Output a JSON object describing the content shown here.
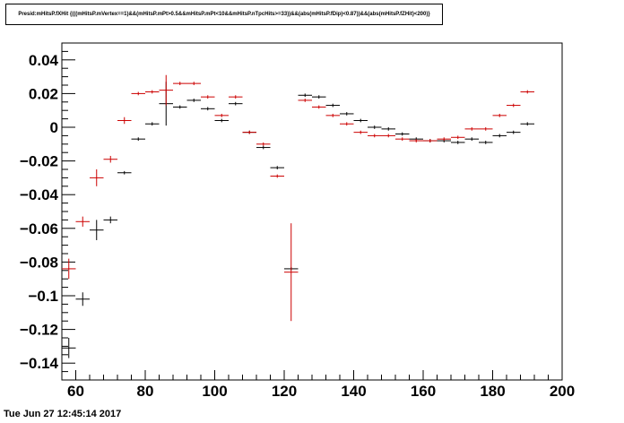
{
  "title": "Presid:mHitsP.fXHit {(((mHitsP.mVertex==1)&&(mHitsP.mPt>0.5&&mHitsP.mPt<10&&mHitsP.nTpcHits>=33))&&(abs(mHitsP.fDip)<0.87))&&(abs(mHitsP.fZHit)<200)}",
  "footer": "Tue Jun 27 12:45:14 2017",
  "chart_data": {
    "type": "scatter",
    "title": "Presid:mHitsP.fXHit {(((mHitsP.mVertex==1)&&(mHitsP.mPt>0.5&&mHitsP.mPt<10&&mHitsP.nTpcHits>=33))&&(abs(mHitsP.fDip)<0.87))&&(abs(mHitsP.fZHit)<200)}",
    "xlim": [
      56,
      200
    ],
    "ylim": [
      -0.15,
      0.05
    ],
    "x_ticks": [
      60,
      80,
      100,
      120,
      140,
      160,
      180,
      200
    ],
    "y_ticks": [
      -0.14,
      -0.12,
      -0.1,
      -0.08,
      -0.06,
      -0.04,
      -0.02,
      0,
      0.02,
      0.04
    ],
    "y_tick_labels": [
      "−0.14",
      "−0.12",
      "−0.1",
      "−0.08",
      "−0.06",
      "−0.04",
      "−0.02",
      "0",
      "0.02",
      "0.04"
    ],
    "grid": false,
    "series": [
      {
        "color": "#000000",
        "x_halfwidth": 2,
        "points": [
          {
            "x": 58,
            "y": -0.131,
            "e": 0.006
          },
          {
            "x": 62,
            "y": -0.102,
            "e": 0.004
          },
          {
            "x": 66,
            "y": -0.061,
            "e": 0.006
          },
          {
            "x": 70,
            "y": -0.055,
            "e": 0.002
          },
          {
            "x": 74,
            "y": -0.027,
            "e": 0.001
          },
          {
            "x": 78,
            "y": -0.007,
            "e": 0.001
          },
          {
            "x": 82,
            "y": 0.002,
            "e": 0.001
          },
          {
            "x": 86,
            "y": 0.014,
            "e": 0.013
          },
          {
            "x": 90,
            "y": 0.012,
            "e": 0.001
          },
          {
            "x": 94,
            "y": 0.016,
            "e": 0.001
          },
          {
            "x": 98,
            "y": 0.011,
            "e": 0.001
          },
          {
            "x": 102,
            "y": 0.004,
            "e": 0.001
          },
          {
            "x": 106,
            "y": 0.014,
            "e": 0.001
          },
          {
            "x": 110,
            "y": -0.003,
            "e": 0.001
          },
          {
            "x": 114,
            "y": -0.012,
            "e": 0.001
          },
          {
            "x": 118,
            "y": -0.024,
            "e": 0.001
          },
          {
            "x": 122,
            "y": -0.084,
            "e": 0.001
          },
          {
            "x": 126,
            "y": 0.019,
            "e": 0.001
          },
          {
            "x": 130,
            "y": 0.018,
            "e": 0.001
          },
          {
            "x": 134,
            "y": 0.013,
            "e": 0.001
          },
          {
            "x": 138,
            "y": 0.008,
            "e": 0.001
          },
          {
            "x": 142,
            "y": 0.004,
            "e": 0.001
          },
          {
            "x": 146,
            "y": 0.0,
            "e": 0.001
          },
          {
            "x": 150,
            "y": -0.001,
            "e": 0.001
          },
          {
            "x": 154,
            "y": -0.004,
            "e": 0.001
          },
          {
            "x": 158,
            "y": -0.007,
            "e": 0.001
          },
          {
            "x": 162,
            "y": -0.008,
            "e": 0.001
          },
          {
            "x": 166,
            "y": -0.008,
            "e": 0.001
          },
          {
            "x": 170,
            "y": -0.009,
            "e": 0.001
          },
          {
            "x": 174,
            "y": -0.007,
            "e": 0.001
          },
          {
            "x": 178,
            "y": -0.009,
            "e": 0.001
          },
          {
            "x": 182,
            "y": -0.005,
            "e": 0.001
          },
          {
            "x": 186,
            "y": -0.003,
            "e": 0.001
          },
          {
            "x": 190,
            "y": 0.002,
            "e": 0.001
          }
        ]
      },
      {
        "color": "#cc0000",
        "x_halfwidth": 2,
        "points": [
          {
            "x": 58,
            "y": -0.084,
            "e": 0.006
          },
          {
            "x": 62,
            "y": -0.056,
            "e": 0.003
          },
          {
            "x": 66,
            "y": -0.03,
            "e": 0.005
          },
          {
            "x": 70,
            "y": -0.019,
            "e": 0.002
          },
          {
            "x": 74,
            "y": 0.004,
            "e": 0.002
          },
          {
            "x": 78,
            "y": 0.02,
            "e": 0.001
          },
          {
            "x": 82,
            "y": 0.021,
            "e": 0.001
          },
          {
            "x": 86,
            "y": 0.022,
            "e": 0.009
          },
          {
            "x": 90,
            "y": 0.026,
            "e": 0.001
          },
          {
            "x": 94,
            "y": 0.026,
            "e": 0.001
          },
          {
            "x": 98,
            "y": 0.018,
            "e": 0.001
          },
          {
            "x": 102,
            "y": 0.007,
            "e": 0.001
          },
          {
            "x": 106,
            "y": 0.018,
            "e": 0.001
          },
          {
            "x": 110,
            "y": -0.003,
            "e": 0.001
          },
          {
            "x": 114,
            "y": -0.01,
            "e": 0.001
          },
          {
            "x": 118,
            "y": -0.029,
            "e": 0.001
          },
          {
            "x": 122,
            "y": -0.086,
            "e": 0.029
          },
          {
            "x": 126,
            "y": 0.016,
            "e": 0.001
          },
          {
            "x": 130,
            "y": 0.012,
            "e": 0.001
          },
          {
            "x": 134,
            "y": 0.007,
            "e": 0.001
          },
          {
            "x": 138,
            "y": 0.002,
            "e": 0.001
          },
          {
            "x": 142,
            "y": -0.003,
            "e": 0.001
          },
          {
            "x": 146,
            "y": -0.005,
            "e": 0.001
          },
          {
            "x": 150,
            "y": -0.005,
            "e": 0.001
          },
          {
            "x": 154,
            "y": -0.007,
            "e": 0.001
          },
          {
            "x": 158,
            "y": -0.008,
            "e": 0.001
          },
          {
            "x": 162,
            "y": -0.008,
            "e": 0.001
          },
          {
            "x": 166,
            "y": -0.007,
            "e": 0.001
          },
          {
            "x": 170,
            "y": -0.006,
            "e": 0.001
          },
          {
            "x": 174,
            "y": -0.001,
            "e": 0.001
          },
          {
            "x": 178,
            "y": -0.001,
            "e": 0.001
          },
          {
            "x": 182,
            "y": 0.007,
            "e": 0.001
          },
          {
            "x": 186,
            "y": 0.013,
            "e": 0.001
          },
          {
            "x": 190,
            "y": 0.021,
            "e": 0.001
          }
        ]
      }
    ]
  }
}
